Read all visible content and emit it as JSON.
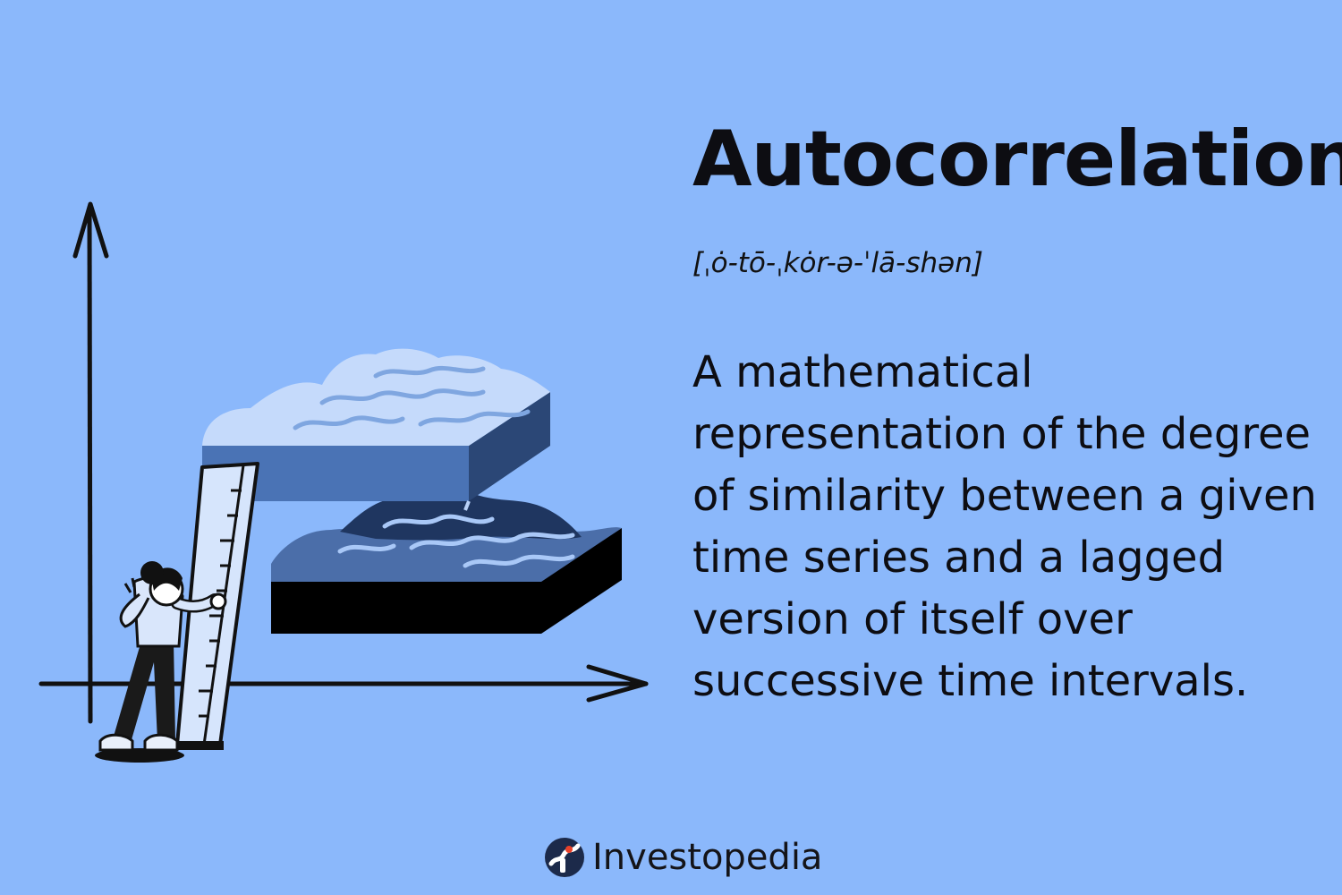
{
  "background": "#8bb8fb",
  "colors": {
    "ink": "#0d0d12",
    "light_slab_top": "#c5dafb",
    "light_slab_front": "#4a73b5",
    "light_slab_side": "#2b4776",
    "dark_slab_top": "#4b6ea9",
    "dark_slab_wave": "#1f3660",
    "dark_slab_front": "#000000",
    "logo_red": "#e8412a"
  },
  "header": {
    "title": "Autocorrelation",
    "pronunciation": "[ˌȯ-tō-ˌkȯr-ə-ˈlā-shən]"
  },
  "definition": {
    "text": "A mathematical representation of the degree of similarity between a given time series and a lagged version of itself over successive time intervals."
  },
  "brand": {
    "name": "Investopedia",
    "logo_icon": "investopedia-logo-icon"
  },
  "illustration": {
    "icons": [
      "y-axis-arrow-icon",
      "x-axis-arrow-icon",
      "wave-slab-icon",
      "ruler-icon",
      "person-icon"
    ]
  }
}
